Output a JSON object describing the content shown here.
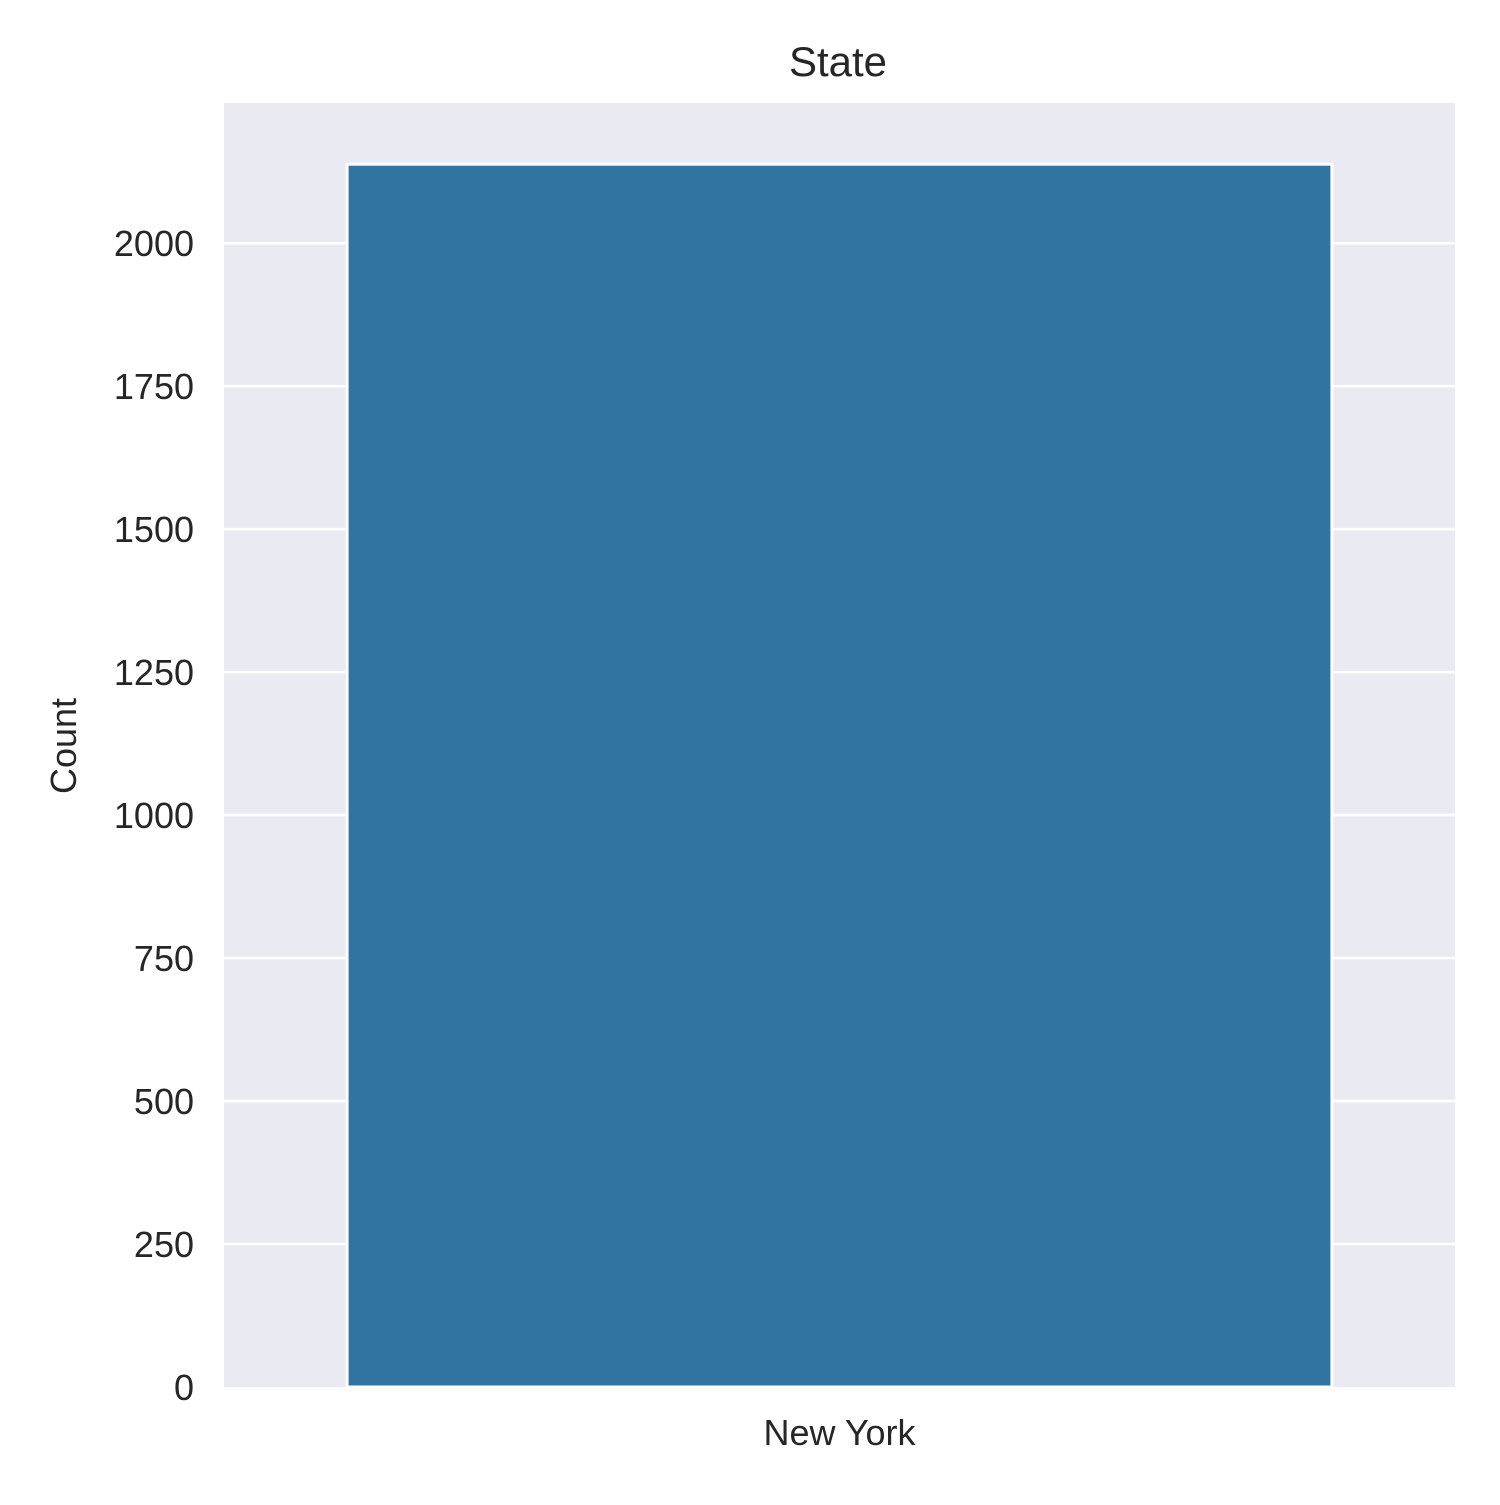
{
  "chart_data": {
    "type": "bar",
    "title": "State",
    "xlabel": "",
    "ylabel": "Count",
    "categories": [
      "New York"
    ],
    "values": [
      2138
    ],
    "ylim": [
      0,
      2245
    ],
    "yticks": [
      0,
      250,
      500,
      750,
      1000,
      1250,
      1500,
      1750,
      2000
    ],
    "grid": true,
    "colors": {
      "bar": "#3274a1",
      "background": "#eaeaf2",
      "grid": "#ffffff"
    }
  }
}
